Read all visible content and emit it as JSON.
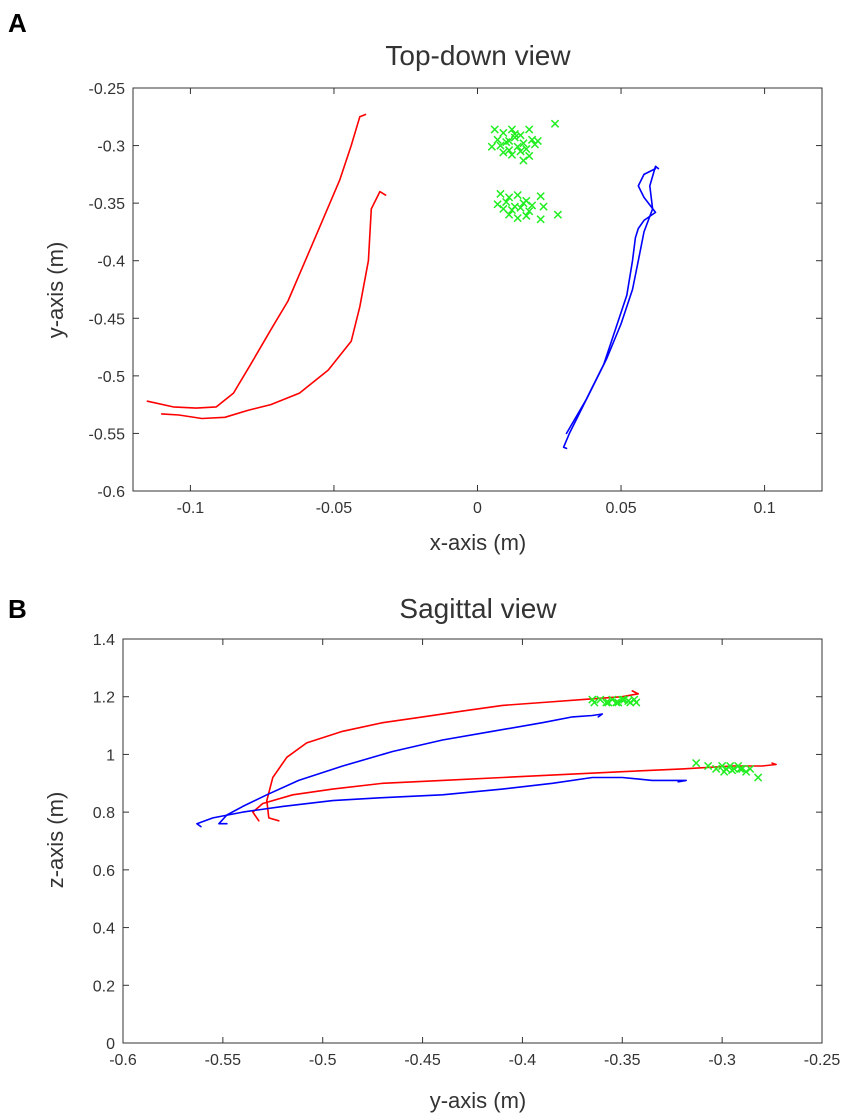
{
  "chart_data": [
    {
      "type": "line",
      "panel_label": "A",
      "title": "Top-down view",
      "xlabel": "x-axis (m)",
      "ylabel": "y-axis (m)",
      "xlim": [
        -0.12,
        0.12
      ],
      "ylim": [
        -0.6,
        -0.25
      ],
      "xticks": [
        -0.1,
        -0.05,
        0,
        0.05,
        0.1
      ],
      "xtick_labels": [
        "-0.1",
        "-0.05",
        "0",
        "0.05",
        "0.1"
      ],
      "yticks": [
        -0.25,
        -0.3,
        -0.35,
        -0.4,
        -0.45,
        -0.5,
        -0.55,
        -0.6
      ],
      "ytick_labels": [
        "-0.25",
        "-0.3",
        "-0.35",
        "-0.4",
        "-0.45",
        "-0.5",
        "-0.55",
        "-0.6"
      ],
      "grid": false,
      "series": [
        {
          "name": "red-trajectory-1",
          "color": "#ff0000",
          "kind": "line",
          "x": [
            -0.039,
            -0.041,
            -0.044,
            -0.048,
            -0.054,
            -0.06,
            -0.066,
            -0.072,
            -0.079,
            -0.085,
            -0.091,
            -0.098,
            -0.106,
            -0.115
          ],
          "y": [
            -0.273,
            -0.275,
            -0.3,
            -0.33,
            -0.365,
            -0.4,
            -0.435,
            -0.46,
            -0.49,
            -0.515,
            -0.527,
            -0.528,
            -0.527,
            -0.522
          ]
        },
        {
          "name": "red-trajectory-2",
          "color": "#ff0000",
          "kind": "line",
          "x": [
            -0.032,
            -0.034,
            -0.037,
            -0.038,
            -0.041,
            -0.044,
            -0.052,
            -0.062,
            -0.072,
            -0.08,
            -0.088,
            -0.096,
            -0.104,
            -0.11
          ],
          "y": [
            -0.343,
            -0.34,
            -0.355,
            -0.4,
            -0.44,
            -0.47,
            -0.495,
            -0.515,
            -0.525,
            -0.53,
            -0.536,
            -0.537,
            -0.534,
            -0.533
          ]
        },
        {
          "name": "blue-trajectory-1",
          "color": "#0000ff",
          "kind": "line",
          "x": [
            0.063,
            0.062,
            0.06,
            0.061,
            0.058,
            0.056,
            0.054,
            0.05,
            0.045,
            0.04,
            0.036,
            0.032,
            0.03,
            0.031
          ],
          "y": [
            -0.32,
            -0.318,
            -0.335,
            -0.355,
            -0.375,
            -0.4,
            -0.425,
            -0.455,
            -0.485,
            -0.51,
            -0.53,
            -0.55,
            -0.562,
            -0.563
          ]
        },
        {
          "name": "blue-trajectory-2",
          "color": "#0000ff",
          "kind": "line",
          "x": [
            0.031,
            0.038,
            0.044,
            0.048,
            0.052,
            0.054,
            0.055,
            0.056,
            0.058,
            0.062,
            0.058,
            0.056,
            0.058,
            0.062
          ],
          "y": [
            -0.55,
            -0.52,
            -0.49,
            -0.46,
            -0.43,
            -0.4,
            -0.38,
            -0.372,
            -0.365,
            -0.358,
            -0.345,
            -0.335,
            -0.325,
            -0.32
          ]
        },
        {
          "name": "targets-upper",
          "color": "#22ee22",
          "kind": "scatter",
          "x": [
            0.006,
            0.009,
            0.012,
            0.015,
            0.018,
            0.021,
            0.027,
            0.007,
            0.01,
            0.013,
            0.016,
            0.019,
            0.005,
            0.008,
            0.011,
            0.014,
            0.017,
            0.02,
            0.009,
            0.012,
            0.015,
            0.018,
            0.011,
            0.016,
            0.013
          ],
          "y": [
            -0.286,
            -0.289,
            -0.286,
            -0.291,
            -0.286,
            -0.296,
            -0.281,
            -0.295,
            -0.297,
            -0.293,
            -0.298,
            -0.295,
            -0.301,
            -0.3,
            -0.304,
            -0.301,
            -0.303,
            -0.299,
            -0.306,
            -0.308,
            -0.305,
            -0.309,
            -0.296,
            -0.313,
            -0.29
          ]
        },
        {
          "name": "targets-lower",
          "color": "#22ee22",
          "kind": "scatter",
          "x": [
            0.008,
            0.011,
            0.014,
            0.017,
            0.022,
            0.007,
            0.01,
            0.013,
            0.016,
            0.019,
            0.009,
            0.012,
            0.015,
            0.018,
            0.023,
            0.028,
            0.011,
            0.014,
            0.017,
            0.022
          ],
          "y": [
            -0.342,
            -0.345,
            -0.343,
            -0.348,
            -0.344,
            -0.351,
            -0.349,
            -0.353,
            -0.35,
            -0.352,
            -0.355,
            -0.356,
            -0.354,
            -0.357,
            -0.353,
            -0.36,
            -0.36,
            -0.363,
            -0.361,
            -0.364
          ]
        }
      ]
    },
    {
      "type": "line",
      "panel_label": "B",
      "title": "Sagittal view",
      "xlabel": "y-axis (m)",
      "ylabel": "z-axis (m)",
      "xlim": [
        -0.6,
        -0.25
      ],
      "ylim": [
        0,
        1.4
      ],
      "xticks": [
        -0.6,
        -0.55,
        -0.5,
        -0.45,
        -0.4,
        -0.35,
        -0.3,
        -0.25
      ],
      "xtick_labels": [
        "-0.6",
        "-0.55",
        "-0.5",
        "-0.45",
        "-0.4",
        "-0.35",
        "-0.3",
        "-0.25"
      ],
      "yticks": [
        0,
        0.2,
        0.4,
        0.6,
        0.8,
        1,
        1.2,
        1.4
      ],
      "ytick_labels": [
        "0",
        "0.2",
        "0.4",
        "0.6",
        "0.8",
        "1",
        "1.2",
        "1.4"
      ],
      "grid": false,
      "series": [
        {
          "name": "red-trajectory-upper",
          "color": "#ff0000",
          "kind": "line",
          "x": [
            -0.522,
            -0.527,
            -0.528,
            -0.525,
            -0.518,
            -0.508,
            -0.49,
            -0.47,
            -0.45,
            -0.43,
            -0.41,
            -0.39,
            -0.37,
            -0.35,
            -0.342,
            -0.345
          ],
          "y": [
            0.77,
            0.78,
            0.84,
            0.92,
            0.99,
            1.04,
            1.08,
            1.11,
            1.13,
            1.15,
            1.17,
            1.18,
            1.19,
            1.2,
            1.21,
            1.22
          ]
        },
        {
          "name": "red-trajectory-lower",
          "color": "#ff0000",
          "kind": "line",
          "x": [
            -0.532,
            -0.535,
            -0.53,
            -0.515,
            -0.495,
            -0.47,
            -0.44,
            -0.41,
            -0.38,
            -0.35,
            -0.32,
            -0.295,
            -0.28,
            -0.273,
            -0.275
          ],
          "y": [
            0.77,
            0.8,
            0.83,
            0.86,
            0.88,
            0.9,
            0.91,
            0.92,
            0.93,
            0.94,
            0.95,
            0.96,
            0.96,
            0.965,
            0.97
          ]
        },
        {
          "name": "blue-trajectory-upper",
          "color": "#0000ff",
          "kind": "line",
          "x": [
            -0.548,
            -0.552,
            -0.548,
            -0.54,
            -0.528,
            -0.512,
            -0.49,
            -0.465,
            -0.44,
            -0.415,
            -0.39,
            -0.375,
            -0.365,
            -0.36,
            -0.362
          ],
          "y": [
            0.76,
            0.76,
            0.79,
            0.82,
            0.86,
            0.91,
            0.96,
            1.01,
            1.05,
            1.08,
            1.11,
            1.13,
            1.135,
            1.14,
            1.13
          ]
        },
        {
          "name": "blue-trajectory-lower",
          "color": "#0000ff",
          "kind": "line",
          "x": [
            -0.561,
            -0.563,
            -0.555,
            -0.54,
            -0.52,
            -0.495,
            -0.47,
            -0.44,
            -0.41,
            -0.385,
            -0.365,
            -0.35,
            -0.335,
            -0.325,
            -0.318,
            -0.322
          ],
          "y": [
            0.75,
            0.76,
            0.78,
            0.8,
            0.82,
            0.84,
            0.85,
            0.86,
            0.88,
            0.9,
            0.92,
            0.92,
            0.91,
            0.91,
            0.91,
            0.905
          ]
        },
        {
          "name": "targets-upper",
          "color": "#22ee22",
          "kind": "scatter",
          "x": [
            -0.364,
            -0.361,
            -0.358,
            -0.355,
            -0.352,
            -0.349,
            -0.346,
            -0.343,
            -0.365,
            -0.353,
            -0.35,
            -0.347,
            -0.344,
            -0.357
          ],
          "y": [
            1.18,
            1.19,
            1.18,
            1.19,
            1.18,
            1.19,
            1.18,
            1.18,
            1.19,
            1.18,
            1.19,
            1.185,
            1.19,
            1.18
          ]
        },
        {
          "name": "targets-lower",
          "color": "#22ee22",
          "kind": "scatter",
          "x": [
            -0.313,
            -0.307,
            -0.303,
            -0.3,
            -0.298,
            -0.296,
            -0.294,
            -0.292,
            -0.29,
            -0.288,
            -0.286,
            -0.299,
            -0.295,
            -0.291,
            -0.282
          ],
          "y": [
            0.97,
            0.96,
            0.95,
            0.96,
            0.95,
            0.96,
            0.95,
            0.96,
            0.95,
            0.94,
            0.95,
            0.94,
            0.945,
            0.95,
            0.92
          ]
        }
      ]
    }
  ]
}
